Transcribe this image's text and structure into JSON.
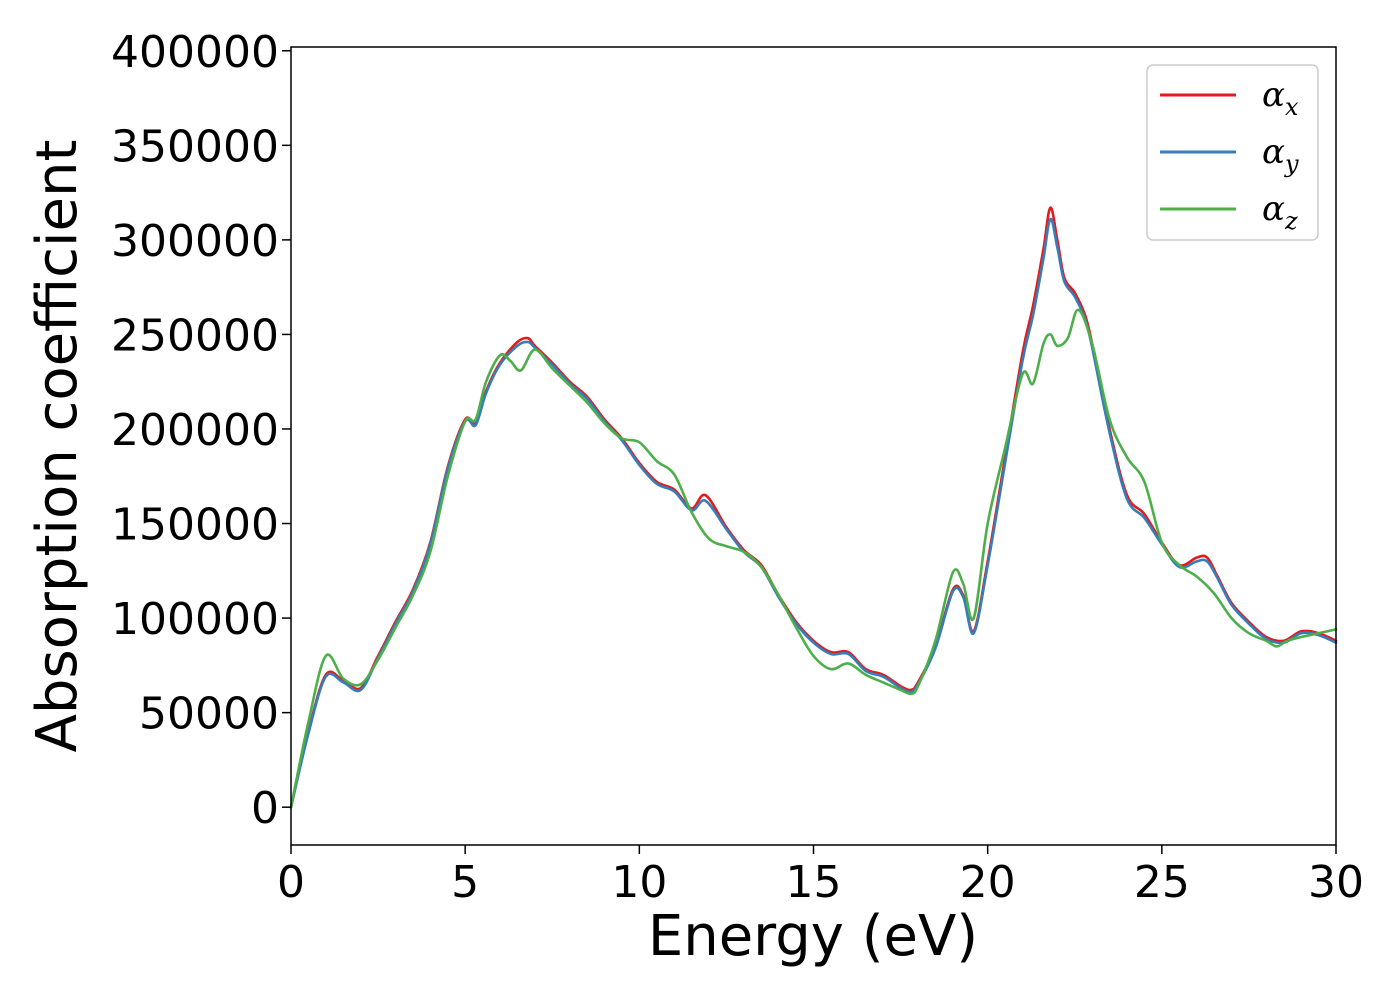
{
  "chart_data": {
    "type": "line",
    "title": "",
    "xlabel": "Energy (eV)",
    "ylabel": "Absorption coefficient",
    "xlim": [
      0,
      30
    ],
    "ylim": [
      -20000,
      402000
    ],
    "xticks": [
      0,
      5,
      10,
      15,
      20,
      25,
      30
    ],
    "xtick_labels": [
      "0",
      "5",
      "10",
      "15",
      "20",
      "25",
      "30"
    ],
    "yticks": [
      0,
      50000,
      100000,
      150000,
      200000,
      250000,
      300000,
      350000,
      400000
    ],
    "ytick_labels": [
      "0",
      "50000",
      "100000",
      "150000",
      "200000",
      "250000",
      "300000",
      "350000",
      "400000"
    ],
    "grid": false,
    "legend_position": "top-right",
    "series": [
      {
        "name": "α",
        "subscript": "x",
        "color": "#e41a1c",
        "x": [
          0,
          0.5,
          1.0,
          1.5,
          2.0,
          2.5,
          3.0,
          3.5,
          4.0,
          4.5,
          5.0,
          5.3,
          5.6,
          6.0,
          6.5,
          6.8,
          7.0,
          7.5,
          8.0,
          8.5,
          9.0,
          9.5,
          10.0,
          10.5,
          11.0,
          11.5,
          11.9,
          12.5,
          13.0,
          13.5,
          14.0,
          14.5,
          15.0,
          15.5,
          16.0,
          16.5,
          17.0,
          17.5,
          17.8,
          18.0,
          18.5,
          19.0,
          19.3,
          19.6,
          20.0,
          20.5,
          21.0,
          21.3,
          21.6,
          21.8,
          22.0,
          22.2,
          22.5,
          22.8,
          23.0,
          23.5,
          24.0,
          24.5,
          25.0,
          25.5,
          26.0,
          26.3,
          26.6,
          27.0,
          27.5,
          28.0,
          28.5,
          29.0,
          29.5,
          30.0
        ],
        "values": [
          0,
          40000,
          70000,
          67000,
          63000,
          80000,
          98000,
          115000,
          140000,
          180000,
          205000,
          203000,
          220000,
          235000,
          246000,
          248000,
          244000,
          235000,
          225000,
          217000,
          205000,
          195000,
          182000,
          172000,
          168000,
          158000,
          165000,
          148000,
          136000,
          128000,
          112000,
          98000,
          88000,
          82000,
          82000,
          73000,
          70000,
          64000,
          62000,
          66000,
          85000,
          115000,
          112000,
          93000,
          130000,
          185000,
          240000,
          265000,
          295000,
          317000,
          300000,
          280000,
          272000,
          260000,
          245000,
          200000,
          165000,
          155000,
          140000,
          128000,
          132000,
          132000,
          122000,
          108000,
          98000,
          90000,
          88000,
          93000,
          92000,
          88000
        ]
      },
      {
        "name": "α",
        "subscript": "y",
        "color": "#377eb8",
        "x": [
          0,
          0.5,
          1.0,
          1.5,
          2.0,
          2.5,
          3.0,
          3.5,
          4.0,
          4.5,
          5.0,
          5.3,
          5.6,
          6.0,
          6.5,
          6.8,
          7.0,
          7.5,
          8.0,
          8.5,
          9.0,
          9.5,
          10.0,
          10.5,
          11.0,
          11.5,
          11.9,
          12.5,
          13.0,
          13.5,
          14.0,
          14.5,
          15.0,
          15.5,
          16.0,
          16.5,
          17.0,
          17.5,
          17.8,
          18.0,
          18.5,
          19.0,
          19.3,
          19.6,
          20.0,
          20.5,
          21.0,
          21.3,
          21.6,
          21.8,
          22.0,
          22.2,
          22.5,
          22.8,
          23.0,
          23.5,
          24.0,
          24.5,
          25.0,
          25.5,
          26.0,
          26.3,
          26.6,
          27.0,
          27.5,
          28.0,
          28.5,
          29.0,
          29.5,
          30.0
        ],
        "values": [
          0,
          39000,
          69000,
          66000,
          62000,
          79000,
          97000,
          114000,
          139000,
          179000,
          204000,
          202000,
          219000,
          234000,
          244000,
          246000,
          243000,
          234000,
          224000,
          216000,
          204000,
          194000,
          181000,
          171000,
          167000,
          157000,
          162000,
          147000,
          135000,
          127000,
          111000,
          97000,
          87000,
          81000,
          81000,
          72000,
          69000,
          63000,
          61000,
          65000,
          84000,
          114000,
          111000,
          92000,
          128000,
          182000,
          236000,
          260000,
          290000,
          311000,
          296000,
          278000,
          270000,
          258000,
          243000,
          198000,
          163000,
          153000,
          139000,
          127000,
          130000,
          130000,
          121000,
          107000,
          97000,
          89000,
          87000,
          92000,
          91000,
          87000
        ]
      },
      {
        "name": "α",
        "subscript": "z",
        "color": "#4daf4a",
        "x": [
          0,
          0.5,
          1.0,
          1.5,
          2.0,
          2.5,
          3.0,
          3.5,
          4.0,
          4.5,
          5.0,
          5.3,
          5.6,
          6.0,
          6.3,
          6.6,
          7.0,
          7.5,
          8.0,
          8.5,
          9.0,
          9.5,
          10.0,
          10.5,
          11.0,
          11.5,
          12.0,
          12.5,
          13.0,
          13.5,
          14.0,
          14.5,
          15.0,
          15.5,
          16.0,
          16.5,
          17.0,
          17.5,
          17.8,
          18.0,
          18.5,
          19.0,
          19.3,
          19.6,
          20.0,
          20.5,
          21.0,
          21.3,
          21.6,
          21.8,
          22.0,
          22.3,
          22.6,
          23.0,
          23.5,
          24.0,
          24.5,
          25.0,
          25.5,
          26.0,
          26.5,
          27.0,
          27.5,
          28.0,
          28.3,
          28.6,
          29.0,
          29.5,
          30.0
        ],
        "values": [
          0,
          45000,
          80000,
          68000,
          65000,
          78000,
          95000,
          112000,
          135000,
          175000,
          204000,
          205000,
          225000,
          239000,
          236000,
          231000,
          242000,
          232000,
          223000,
          214000,
          203000,
          195000,
          193000,
          183000,
          176000,
          156000,
          142000,
          138000,
          135000,
          127000,
          112000,
          95000,
          80000,
          73000,
          76000,
          70000,
          66000,
          62000,
          60000,
          64000,
          88000,
          124000,
          118000,
          100000,
          150000,
          190000,
          229000,
          224000,
          245000,
          250000,
          244000,
          248000,
          263000,
          245000,
          205000,
          185000,
          172000,
          140000,
          128000,
          122000,
          113000,
          100000,
          92000,
          88000,
          85000,
          88000,
          90000,
          92000,
          94000
        ]
      }
    ]
  }
}
